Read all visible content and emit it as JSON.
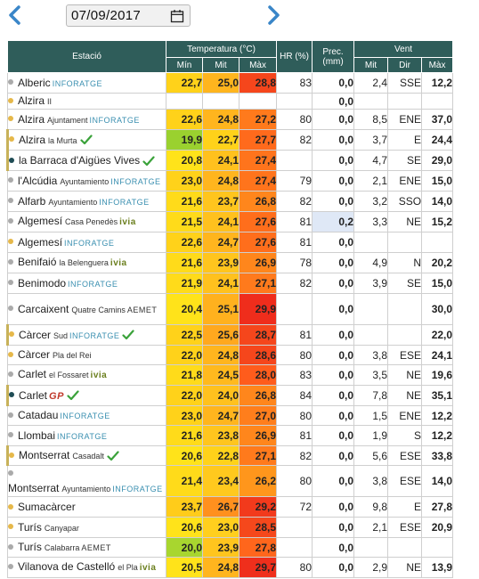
{
  "date": "07/09/2017",
  "headers": {
    "station": "Estació",
    "temperature": "Temperatura (°C)",
    "humidity": "HR (%)",
    "precipitation": "Prec. (mm)",
    "wind": "Vent",
    "t_min": "Mín",
    "t_mit": "Mit",
    "t_max": "Màx",
    "w_mit": "Mit",
    "w_dir": "Dir",
    "w_max": "Màx"
  },
  "colors": {
    "header": "#2f5d5a",
    "temp_yellow": "#ffd21a",
    "temp_orange": "#ff9a1c",
    "temp_red": "#f0301c",
    "temp_green": "#9ad12f"
  },
  "rows": [
    {
      "name": "Alberic",
      "sub": "",
      "source": "INFORATGE",
      "dot": "grey",
      "bar": false,
      "check": false,
      "min": "22,7",
      "mit": "25,0",
      "max": "28,8",
      "hr": "83",
      "prec": "0,0",
      "wmit": "2,4",
      "wdir": "SSE",
      "wmax": "12,2",
      "cmin": "#ffd21a",
      "cmit": "#ffb51e",
      "cmax": "#f5461c"
    },
    {
      "name": "Alzira",
      "sub": "II",
      "source": "",
      "dot": "yellow",
      "bar": false,
      "check": false,
      "min": "",
      "mit": "",
      "max": "",
      "hr": "",
      "prec": "0,0",
      "wmit": "",
      "wdir": "",
      "wmax": "",
      "cmin": "",
      "cmit": "",
      "cmax": ""
    },
    {
      "name": "Alzira",
      "sub": "Ajuntament",
      "source": "INFORATGE",
      "dot": "yellow",
      "bar": false,
      "check": false,
      "min": "22,6",
      "mit": "24,8",
      "max": "27,2",
      "hr": "80",
      "prec": "0,0",
      "wmit": "8,5",
      "wdir": "ENE",
      "wmax": "37,0",
      "cmin": "#ffd21a",
      "cmit": "#ffb51e",
      "cmax": "#ff7a1c"
    },
    {
      "name": "Alzira",
      "sub": "la Murta",
      "source": "",
      "dot": "yellow",
      "bar": true,
      "check": true,
      "min": "19,9",
      "mit": "22,7",
      "max": "27,7",
      "hr": "82",
      "prec": "0,0",
      "wmit": "3,7",
      "wdir": "E",
      "wmax": "24,4",
      "cmin": "#9ad12f",
      "cmit": "#ffd21a",
      "cmax": "#ff6a1c"
    },
    {
      "name": "la Barraca d'Aigües Vives",
      "sub": "",
      "source": "",
      "dot": "navy",
      "bar": true,
      "check": true,
      "min": "20,8",
      "mit": "24,1",
      "max": "27,4",
      "hr": "",
      "prec": "0,0",
      "wmit": "4,7",
      "wdir": "SE",
      "wmax": "29,0",
      "cmin": "#ffe31a",
      "cmit": "#ffc11e",
      "cmax": "#ff741c"
    },
    {
      "name": "l'Alcúdia",
      "sub": "Ayuntamiento",
      "source": "INFORATGE",
      "dot": "grey",
      "bar": false,
      "check": false,
      "min": "23,0",
      "mit": "24,8",
      "max": "27,4",
      "hr": "79",
      "prec": "0,0",
      "wmit": "2,1",
      "wdir": "ENE",
      "wmax": "15,0",
      "cmin": "#ffd21a",
      "cmit": "#ffb51e",
      "cmax": "#ff741c"
    },
    {
      "name": "Alfarb",
      "sub": "Ayuntamiento",
      "source": "INFORATGE",
      "dot": "grey",
      "bar": false,
      "check": false,
      "min": "21,6",
      "mit": "23,7",
      "max": "26,8",
      "hr": "82",
      "prec": "0,0",
      "wmit": "3,2",
      "wdir": "SSO",
      "wmax": "14,0",
      "cmin": "#ffdb1a",
      "cmit": "#ffc51e",
      "cmax": "#ff861c"
    },
    {
      "name": "Algemesí",
      "sub": "Casa Penedès",
      "source": "ivia",
      "dot": "grey",
      "bar": false,
      "check": false,
      "min": "21,5",
      "mit": "24,1",
      "max": "27,6",
      "hr": "81",
      "prec": "0,2",
      "wmit": "3,3",
      "wdir": "NE",
      "wmax": "15,2",
      "cmin": "#ffdb1a",
      "cmit": "#ffc11e",
      "cmax": "#ff6e1c"
    },
    {
      "name": "Algemesí",
      "sub": "",
      "source": "INFORATGE",
      "dot": "yellow",
      "bar": false,
      "check": false,
      "min": "22,6",
      "mit": "24,7",
      "max": "27,6",
      "hr": "81",
      "prec": "0,0",
      "wmit": "",
      "wdir": "",
      "wmax": "",
      "cmin": "#ffd21a",
      "cmit": "#ffb51e",
      "cmax": "#ff6e1c"
    },
    {
      "name": "Benifaió",
      "sub": "la Belenguera",
      "source": "ivia",
      "dot": "grey",
      "bar": false,
      "check": false,
      "min": "21,6",
      "mit": "23,9",
      "max": "26,9",
      "hr": "78",
      "prec": "0,0",
      "wmit": "4,9",
      "wdir": "N",
      "wmax": "20,2",
      "cmin": "#ffdb1a",
      "cmit": "#ffc51e",
      "cmax": "#ff861c"
    },
    {
      "name": "Benimodo",
      "sub": "",
      "source": "INFORATGE",
      "dot": "grey",
      "bar": false,
      "check": false,
      "min": "21,9",
      "mit": "24,1",
      "max": "27,1",
      "hr": "82",
      "prec": "0,0",
      "wmit": "3,9",
      "wdir": "SE",
      "wmax": "15,0",
      "cmin": "#ffdb1a",
      "cmit": "#ffc11e",
      "cmax": "#ff7a1c"
    },
    {
      "name": "Carcaixent",
      "sub": "Quatre Camins",
      "source": "AEMET",
      "dot": "grey",
      "bar": false,
      "check": false,
      "min": "20,4",
      "mit": "25,1",
      "max": "29,9",
      "hr": "",
      "prec": "0,0",
      "wmit": "",
      "wdir": "",
      "wmax": "30,0",
      "cmin": "#ffe31a",
      "cmit": "#ffb11e",
      "cmax": "#ef2d1c"
    },
    {
      "name": "Càrcer",
      "sub": "Sud",
      "source": "INFORATGE",
      "dot": "yellow",
      "bar": true,
      "check": true,
      "min": "22,5",
      "mit": "25,6",
      "max": "28,7",
      "hr": "81",
      "prec": "0,0",
      "wmit": "",
      "wdir": "",
      "wmax": "22,0",
      "cmin": "#ffd21a",
      "cmit": "#ffa81e",
      "cmax": "#f5461c"
    },
    {
      "name": "Càrcer",
      "sub": "Pla del Rei",
      "source": "",
      "dot": "yellow",
      "bar": false,
      "check": false,
      "min": "22,0",
      "mit": "24,8",
      "max": "28,6",
      "hr": "80",
      "prec": "0,0",
      "wmit": "3,8",
      "wdir": "ESE",
      "wmax": "24,1",
      "cmin": "#ffd21a",
      "cmit": "#ffb51e",
      "cmax": "#f5461c"
    },
    {
      "name": "Carlet",
      "sub": "el Fossaret",
      "source": "ivia",
      "dot": "grey",
      "bar": false,
      "check": false,
      "min": "21,8",
      "mit": "24,5",
      "max": "28,0",
      "hr": "83",
      "prec": "0,0",
      "wmit": "3,5",
      "wdir": "NE",
      "wmax": "19,6",
      "cmin": "#ffdb1a",
      "cmit": "#ffb91e",
      "cmax": "#ff5c1c"
    },
    {
      "name": "Carlet",
      "sub": "",
      "source": "GP",
      "dot": "navy",
      "bar": true,
      "check": true,
      "min": "22,0",
      "mit": "24,0",
      "max": "26,8",
      "hr": "84",
      "prec": "0,0",
      "wmit": "7,8",
      "wdir": "NE",
      "wmax": "35,1",
      "cmin": "#ffd21a",
      "cmit": "#ffc11e",
      "cmax": "#ff861c"
    },
    {
      "name": "Catadau",
      "sub": "",
      "source": "INFORATGE",
      "dot": "grey",
      "bar": false,
      "check": false,
      "min": "23,0",
      "mit": "24,7",
      "max": "27,0",
      "hr": "80",
      "prec": "0,0",
      "wmit": "1,5",
      "wdir": "ENE",
      "wmax": "12,2",
      "cmin": "#ffd21a",
      "cmit": "#ffb51e",
      "cmax": "#ff7e1c"
    },
    {
      "name": "Llombai",
      "sub": "",
      "source": "INFORATGE",
      "dot": "grey",
      "bar": false,
      "check": false,
      "min": "21,6",
      "mit": "23,8",
      "max": "26,9",
      "hr": "81",
      "prec": "0,0",
      "wmit": "1,9",
      "wdir": "S",
      "wmax": "12,2",
      "cmin": "#ffdb1a",
      "cmit": "#ffc51e",
      "cmax": "#ff861c"
    },
    {
      "name": "Montserrat",
      "sub": "Casadalt",
      "source": "",
      "dot": "yellow",
      "bar": true,
      "check": true,
      "min": "20,6",
      "mit": "22,8",
      "max": "27,1",
      "hr": "82",
      "prec": "0,0",
      "wmit": "5,6",
      "wdir": "ESE",
      "wmax": "33,8",
      "cmin": "#ffe31a",
      "cmit": "#ffd21a",
      "cmax": "#ff7a1c"
    },
    {
      "name": "Montserrat",
      "sub": "Ayuntamiento",
      "source": "INFORATGE",
      "dot": "grey",
      "bar": false,
      "check": false,
      "min": "21,4",
      "mit": "23,4",
      "max": "26,2",
      "hr": "80",
      "prec": "0,0",
      "wmit": "3,8",
      "wdir": "ESE",
      "wmax": "14,0",
      "cmin": "#ffdb1a",
      "cmit": "#ffc91e",
      "cmax": "#ff961c"
    },
    {
      "name": "Sumacàrcer",
      "sub": "",
      "source": "",
      "dot": "yellow",
      "bar": false,
      "check": false,
      "min": "23,7",
      "mit": "26,7",
      "max": "29,2",
      "hr": "72",
      "prec": "0,0",
      "wmit": "9,8",
      "wdir": "E",
      "wmax": "27,8",
      "cmin": "#ffcc1a",
      "cmit": "#ff901e",
      "cmax": "#f23a1c"
    },
    {
      "name": "Turís",
      "sub": "Canyapar",
      "source": "",
      "dot": "yellow",
      "bar": false,
      "check": false,
      "min": "20,6",
      "mit": "23,0",
      "max": "28,5",
      "hr": "",
      "prec": "0,0",
      "wmit": "2,1",
      "wdir": "ESE",
      "wmax": "20,9",
      "cmin": "#ffe31a",
      "cmit": "#ffcf1e",
      "cmax": "#f5481c"
    },
    {
      "name": "Turís",
      "sub": "Calabarra",
      "source": "AEMET",
      "dot": "grey",
      "bar": false,
      "check": false,
      "min": "20,0",
      "mit": "23,9",
      "max": "27,8",
      "hr": "",
      "prec": "0,0",
      "wmit": "",
      "wdir": "",
      "wmax": "",
      "cmin": "#a8d62f",
      "cmit": "#ffc51e",
      "cmax": "#ff661c"
    },
    {
      "name": "Vilanova de Castelló",
      "sub": "el Pla",
      "source": "ivia",
      "dot": "grey",
      "bar": false,
      "check": false,
      "min": "20,5",
      "mit": "24,8",
      "max": "29,7",
      "hr": "80",
      "prec": "0,0",
      "wmit": "2,9",
      "wdir": "NE",
      "wmax": "13,9",
      "cmin": "#ffe31a",
      "cmit": "#ffb51e",
      "cmax": "#ef2f1c"
    }
  ]
}
